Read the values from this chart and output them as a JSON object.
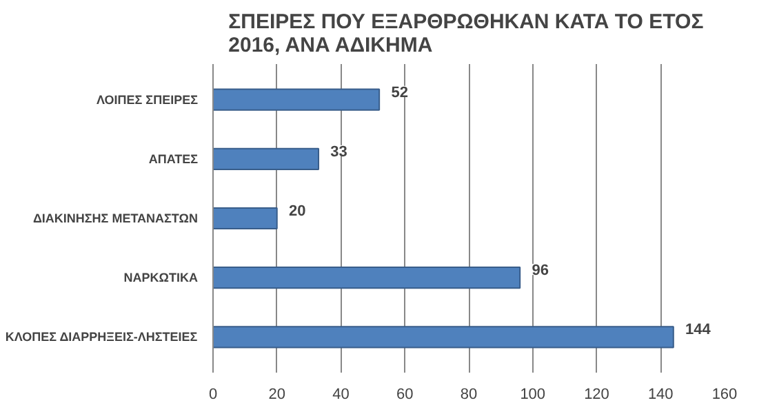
{
  "chart_data": {
    "type": "bar",
    "orientation": "horizontal",
    "title": "ΣΠΕΙΡΕΣ ΠΟΥ ΕΞΑΡΘΡΩΘΗΚΑΝ ΚΑΤΑ ΤΟ  ΕΤΟΣ\n2016, ΑΝΑ ΑΔΙΚΗΜΑ",
    "categories": [
      "ΛΟΙΠΕΣ ΣΠΕΙΡΕΣ",
      "ΑΠΑΤΕΣ",
      "ΔΙΑΚΙΝΗΣΗΣ ΜΕΤΑΝΑΣΤΩΝ",
      "ΝΑΡΚΩΤΙΚΑ",
      "ΚΛΟΠΕΣ ΔΙΑΡΡΗΞΕΙΣ-ΛΗΣΤΕΙΕΣ"
    ],
    "values": [
      52,
      33,
      20,
      96,
      144
    ],
    "color": "#4f81bd",
    "xlim": [
      0,
      160
    ],
    "xticks": [
      0,
      20,
      40,
      60,
      80,
      100,
      120,
      140,
      160
    ],
    "grid": "x",
    "data_labels": true
  }
}
